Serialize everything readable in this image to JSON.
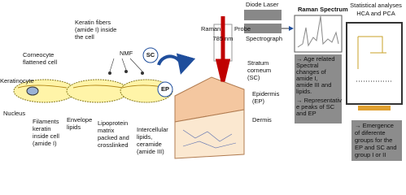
{
  "laser": "Diode Laser",
  "spectrum": {
    "title": "Raman Spectrum",
    "notes": [
      [
        "→ Age related",
        "Spectral",
        "changes of",
        "amide I,",
        "amide III and",
        "lipids."
      ],
      [
        "→ Representativ",
        "e peaks of SC",
        "and EP"
      ]
    ]
  },
  "stats": {
    "title": [
      "Statistical analyses",
      "HCA and PCA"
    ],
    "notes": [
      "→ Emergence",
      "of diferente",
      "groups for the",
      "EP and SC and",
      "group I or II"
    ]
  },
  "spectrograph": "Spectrograph",
  "probe": [
    "Raman",
    "Probe"
  ],
  "wavelength": "785 nm",
  "skin": {
    "sc": [
      "Stratum",
      "corneum",
      "(SC)"
    ],
    "ep": [
      "Epidermis",
      "(EP)"
    ],
    "dermis": "Dermis"
  },
  "arrows": {
    "sc": "SC",
    "ep": "EP"
  },
  "cells": {
    "keratin_fibers": [
      "Keratin fibers",
      "(amide I) inside",
      "the cell"
    ],
    "corneocyte": [
      "Corneocyte",
      "flattened cell"
    ],
    "nmf": "NMF",
    "keratinocyte": "Keratinocyte",
    "nucleus": "Nucleus",
    "filaments": [
      "Filaments",
      "keratin",
      "inside cell",
      "(amide I)"
    ],
    "envelope": [
      "Envelope",
      "lipids"
    ],
    "lipoprotein": [
      "Lipoprotein",
      "matrix",
      "packed and",
      "crosslinked"
    ],
    "intercellular": [
      "Intercellular",
      "lipids,",
      "ceramide",
      "(amide III)"
    ]
  }
}
